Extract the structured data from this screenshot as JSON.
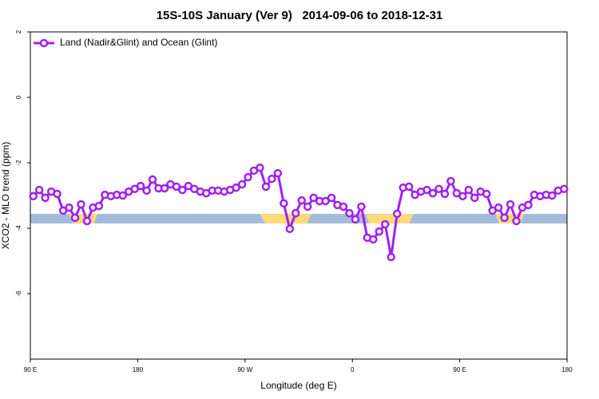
{
  "chart_data": {
    "type": "line",
    "title": "15S-10S January (Ver 9)   2014-09-06 to 2018-12-31",
    "xlabel": "Longitude (deg E)",
    "ylabel": "XCO2 - MLO trend (ppm)",
    "xlim": [
      90,
      540
    ],
    "xticks": [
      {
        "value": 90,
        "label": "90 E"
      },
      180,
      {
        "value": 270,
        "label": "90 W"
      },
      {
        "value": 360,
        "label": "0"
      },
      {
        "value": 450,
        "label": "90 E"
      },
      {
        "value": 540,
        "label": "180"
      }
    ],
    "ylim": [
      -8,
      2
    ],
    "yticks": [
      -6,
      -4,
      -2,
      0,
      2
    ],
    "legend": "top-left",
    "x": [
      92.5,
      97.5,
      102.5,
      107.5,
      112.5,
      117.5,
      122.5,
      127.5,
      132.5,
      137.5,
      142.5,
      147.5,
      152.5,
      157.5,
      162.5,
      167.5,
      172.5,
      177.5,
      182.5,
      187.5,
      192.5,
      197.5,
      202.5,
      207.5,
      212.5,
      217.5,
      222.5,
      227.5,
      232.5,
      237.5,
      242.5,
      247.5,
      252.5,
      257.5,
      262.5,
      267.5,
      272.5,
      277.5,
      282.5,
      287.5,
      292.5,
      297.5,
      302.5,
      307.5,
      312.5,
      317.5,
      322.5,
      327.5,
      332.5,
      337.5,
      342.5,
      347.5,
      352.5,
      357.5,
      362.5,
      367.5,
      372.5,
      377.5,
      382.5,
      387.5,
      392.5,
      397.5,
      402.5,
      407.5,
      412.5,
      417.5,
      422.5,
      427.5,
      432.5,
      437.5,
      442.5,
      447.5,
      452.5,
      457.5,
      462.5,
      467.5,
      472.5,
      477.5,
      482.5,
      487.5,
      492.5,
      497.5,
      502.5,
      507.5,
      512.5,
      517.5,
      522.5,
      527.5,
      532.5,
      537.5
    ],
    "series": [
      {
        "name": "Land (Nadir&Glint) and Ocean (Glint)",
        "color": "#a020f0",
        "values": [
          -3.02,
          -2.83,
          -3.07,
          -2.88,
          -2.95,
          -3.46,
          -3.37,
          -3.68,
          -3.27,
          -3.78,
          -3.37,
          -3.32,
          -2.98,
          -3.02,
          -2.98,
          -3.0,
          -2.88,
          -2.8,
          -2.71,
          -2.85,
          -2.51,
          -2.78,
          -2.78,
          -2.66,
          -2.73,
          -2.83,
          -2.71,
          -2.8,
          -2.88,
          -2.93,
          -2.85,
          -2.85,
          -2.88,
          -2.83,
          -2.76,
          -2.66,
          -2.44,
          -2.24,
          -2.15,
          -2.73,
          -2.49,
          -2.32,
          -3.24,
          -4.02,
          -3.54,
          -3.15,
          -3.34,
          -3.07,
          -3.17,
          -3.17,
          -3.07,
          -3.29,
          -3.34,
          -3.54,
          -3.73,
          -3.34,
          -4.29,
          -4.34,
          -4.1,
          -3.88,
          -4.88,
          -3.56,
          -2.76,
          -2.73,
          -2.98,
          -2.88,
          -2.83,
          -2.93,
          -2.8,
          -2.95,
          -2.56,
          -2.93,
          -3.02,
          -2.83,
          -3.07,
          -2.88,
          -2.95,
          -3.46,
          -3.37,
          -3.68,
          -3.27,
          -3.78,
          -3.37,
          -3.29,
          -2.98,
          -3.02,
          -2.98,
          -3.0,
          -2.85,
          -2.8
        ]
      }
    ]
  }
}
